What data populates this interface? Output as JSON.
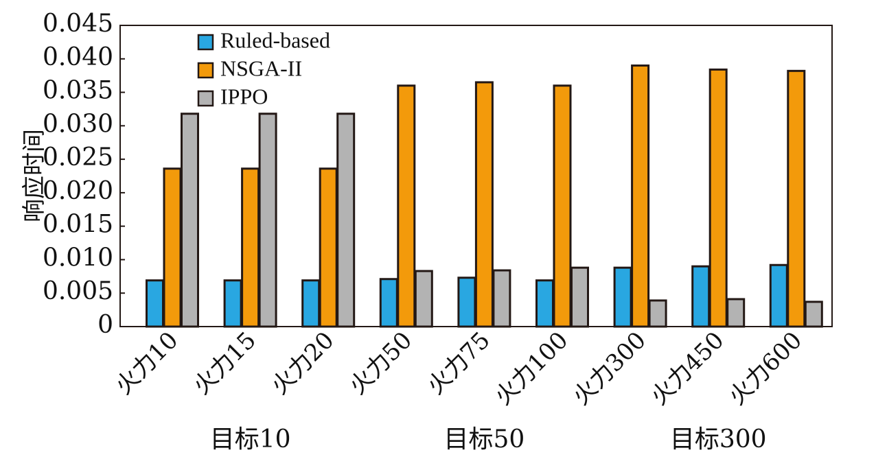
{
  "chart_data": {
    "type": "bar",
    "ylabel": "响应时间",
    "ylim": [
      0,
      0.045
    ],
    "yticks": [
      "0",
      "0.005",
      "0.010",
      "0.015",
      "0.020",
      "0.025",
      "0.030",
      "0.035",
      "0.040",
      "0.045"
    ],
    "categories": [
      "火力10",
      "火力15",
      "火力20",
      "火力50",
      "火力75",
      "火力100",
      "火力300",
      "火力450",
      "火力600"
    ],
    "groups": [
      {
        "label": "目标10",
        "categories": [
          0,
          1,
          2
        ]
      },
      {
        "label": "目标50",
        "categories": [
          3,
          4,
          5
        ]
      },
      {
        "label": "目标300",
        "categories": [
          6,
          7,
          8
        ]
      }
    ],
    "legend_position": "top-left",
    "grid": false,
    "series": [
      {
        "name": "Ruled-based",
        "color": "#29a7e1",
        "values": [
          0.0069,
          0.0069,
          0.0069,
          0.0071,
          0.0073,
          0.0069,
          0.0088,
          0.009,
          0.0092
        ]
      },
      {
        "name": "NSGA-II",
        "color": "#f39a0b",
        "values": [
          0.0236,
          0.0236,
          0.0236,
          0.036,
          0.0365,
          0.036,
          0.039,
          0.0384,
          0.0382
        ]
      },
      {
        "name": "IPPO",
        "color": "#b3b3b3",
        "values": [
          0.0318,
          0.0318,
          0.0318,
          0.0083,
          0.0084,
          0.0088,
          0.0039,
          0.0041,
          0.0037
        ]
      }
    ]
  }
}
